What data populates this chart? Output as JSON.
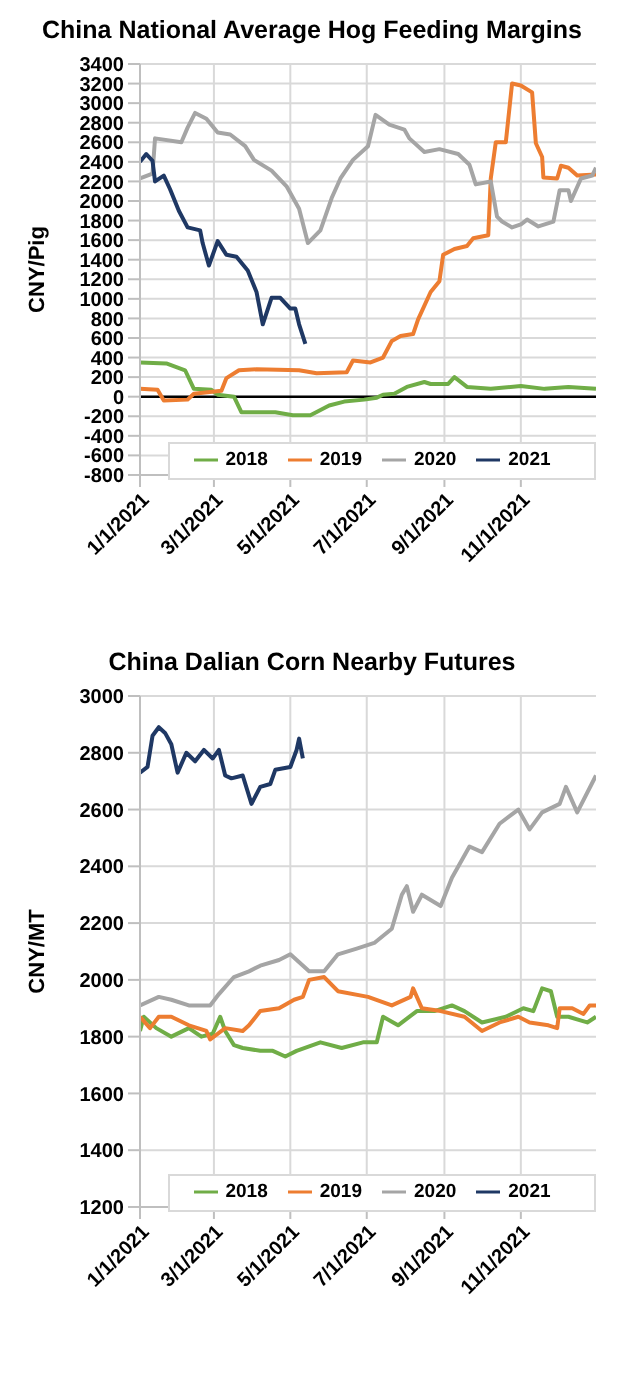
{
  "chart_data": [
    {
      "type": "line",
      "title": "China National Average Hog Feeding Margins",
      "ylabel": "CNY/Pig",
      "xlim": [
        "2021-01-01",
        "2021-12-31"
      ],
      "xticks": [
        {
          "value": "2021-01-01",
          "label": "1/1/2021"
        },
        {
          "value": "2021-03-01",
          "label": "3/1/2021"
        },
        {
          "value": "2021-05-01",
          "label": "5/1/2021"
        },
        {
          "value": "2021-07-01",
          "label": "7/1/2021"
        },
        {
          "value": "2021-09-01",
          "label": "9/1/2021"
        },
        {
          "value": "2021-11-01",
          "label": "11/1/2021"
        }
      ],
      "ylim": [
        -800,
        3400
      ],
      "yticks": [
        -800,
        -600,
        -400,
        -200,
        0,
        200,
        400,
        600,
        800,
        1000,
        1200,
        1400,
        1600,
        1800,
        2000,
        2200,
        2400,
        2600,
        2800,
        3000,
        3200,
        3400
      ],
      "grid": true,
      "legend": "bottom",
      "ref_lines": [
        {
          "axis": "y",
          "value": 0,
          "color": "#000000"
        }
      ],
      "series": [
        {
          "name": "2018",
          "color": "#70ad47",
          "x": [
            "2021-01-01",
            "2021-01-22",
            "2021-02-06",
            "2021-02-13",
            "2021-02-27",
            "2021-03-04",
            "2021-03-17",
            "2021-03-23",
            "2021-04-19",
            "2021-05-03",
            "2021-05-17",
            "2021-06-01",
            "2021-06-13",
            "2021-06-29",
            "2021-07-09",
            "2021-07-14",
            "2021-07-23",
            "2021-08-02",
            "2021-08-16",
            "2021-08-21",
            "2021-09-04",
            "2021-09-09",
            "2021-09-19",
            "2021-10-08",
            "2021-11-01",
            "2021-11-20",
            "2021-12-09",
            "2021-12-31"
          ],
          "values": [
            350,
            340,
            270,
            80,
            70,
            20,
            0,
            -160,
            -160,
            -190,
            -190,
            -90,
            -50,
            -30,
            -10,
            20,
            30,
            100,
            150,
            130,
            130,
            200,
            100,
            80,
            110,
            80,
            100,
            80
          ]
        },
        {
          "name": "2019",
          "color": "#ed7d31",
          "x": [
            "2021-01-01",
            "2021-01-15",
            "2021-01-20",
            "2021-02-08",
            "2021-02-13",
            "2021-03-07",
            "2021-03-11",
            "2021-03-21",
            "2021-04-04",
            "2021-05-08",
            "2021-05-22",
            "2021-06-15",
            "2021-06-20",
            "2021-07-04",
            "2021-07-14",
            "2021-07-21",
            "2021-07-28",
            "2021-08-07",
            "2021-08-11",
            "2021-08-21",
            "2021-08-28",
            "2021-08-31",
            "2021-09-09",
            "2021-09-19",
            "2021-09-24",
            "2021-10-06",
            "2021-10-08",
            "2021-10-12",
            "2021-10-20",
            "2021-10-25",
            "2021-11-01",
            "2021-11-10",
            "2021-11-13",
            "2021-11-18",
            "2021-11-19",
            "2021-11-30",
            "2021-12-03",
            "2021-12-09",
            "2021-12-16",
            "2021-12-31"
          ],
          "values": [
            80,
            70,
            -40,
            -30,
            30,
            60,
            190,
            270,
            280,
            270,
            240,
            250,
            370,
            350,
            400,
            570,
            620,
            640,
            790,
            1070,
            1180,
            1450,
            1510,
            1540,
            1620,
            1650,
            2230,
            2600,
            2600,
            3200,
            3180,
            3110,
            2590,
            2450,
            2240,
            2230,
            2360,
            2340,
            2260,
            2270
          ]
        },
        {
          "name": "2020",
          "color": "#a5a5a5",
          "x": [
            "2021-01-01",
            "2021-01-11",
            "2021-01-13",
            "2021-02-03",
            "2021-02-08",
            "2021-02-14",
            "2021-02-23",
            "2021-03-04",
            "2021-03-14",
            "2021-03-26",
            "2021-04-02",
            "2021-04-16",
            "2021-04-28",
            "2021-05-08",
            "2021-05-15",
            "2021-05-25",
            "2021-06-03",
            "2021-06-10",
            "2021-06-20",
            "2021-07-02",
            "2021-07-08",
            "2021-07-19",
            "2021-07-31",
            "2021-08-04",
            "2021-08-16",
            "2021-08-28",
            "2021-09-12",
            "2021-09-21",
            "2021-09-26",
            "2021-10-08",
            "2021-10-13",
            "2021-10-17",
            "2021-10-25",
            "2021-11-01",
            "2021-11-06",
            "2021-11-15",
            "2021-11-27",
            "2021-12-02",
            "2021-12-09",
            "2021-12-11",
            "2021-12-19",
            "2021-12-28",
            "2021-12-31"
          ],
          "values": [
            2230,
            2280,
            2640,
            2600,
            2750,
            2900,
            2840,
            2700,
            2680,
            2560,
            2420,
            2310,
            2150,
            1920,
            1570,
            1700,
            2030,
            2230,
            2420,
            2560,
            2880,
            2780,
            2730,
            2640,
            2500,
            2530,
            2480,
            2370,
            2170,
            2200,
            1840,
            1790,
            1730,
            1760,
            1810,
            1740,
            1790,
            2110,
            2110,
            2000,
            2230,
            2260,
            2340
          ]
        },
        {
          "name": "2021",
          "color": "#1f3864",
          "x": [
            "2021-01-01",
            "2021-01-06",
            "2021-01-11",
            "2021-01-13",
            "2021-01-20",
            "2021-01-25",
            "2021-02-01",
            "2021-02-08",
            "2021-02-18",
            "2021-02-20",
            "2021-02-25",
            "2021-03-04",
            "2021-03-11",
            "2021-03-19",
            "2021-03-28",
            "2021-04-04",
            "2021-04-09",
            "2021-04-16",
            "2021-04-23",
            "2021-05-01",
            "2021-05-05",
            "2021-05-08",
            "2021-05-13"
          ],
          "values": [
            2400,
            2480,
            2410,
            2200,
            2260,
            2120,
            1900,
            1730,
            1700,
            1570,
            1340,
            1590,
            1450,
            1430,
            1290,
            1070,
            740,
            1010,
            1010,
            900,
            900,
            740,
            540
          ]
        }
      ]
    },
    {
      "type": "line",
      "title": "China Dalian Corn Nearby Futures",
      "ylabel": "CNY/MT",
      "xlim": [
        "2021-01-01",
        "2021-12-31"
      ],
      "xticks": [
        {
          "value": "2021-01-01",
          "label": "1/1/2021"
        },
        {
          "value": "2021-03-01",
          "label": "3/1/2021"
        },
        {
          "value": "2021-05-01",
          "label": "5/1/2021"
        },
        {
          "value": "2021-07-01",
          "label": "7/1/2021"
        },
        {
          "value": "2021-09-01",
          "label": "9/1/2021"
        },
        {
          "value": "2021-11-01",
          "label": "11/1/2021"
        }
      ],
      "ylim": [
        1200,
        3000
      ],
      "yticks": [
        1200,
        1400,
        1600,
        1800,
        2000,
        2200,
        2400,
        2600,
        2800,
        3000
      ],
      "grid": true,
      "legend": "bottom",
      "series": [
        {
          "name": "2018",
          "color": "#70ad47",
          "x": [
            "2021-01-01",
            "2021-01-04",
            "2021-01-14",
            "2021-01-26",
            "2021-02-09",
            "2021-02-19",
            "2021-02-28",
            "2021-03-06",
            "2021-03-10",
            "2021-03-17",
            "2021-03-24",
            "2021-04-07",
            "2021-04-17",
            "2021-04-27",
            "2021-05-06",
            "2021-05-25",
            "2021-06-11",
            "2021-06-28",
            "2021-07-09",
            "2021-07-14",
            "2021-07-26",
            "2021-08-10",
            "2021-08-24",
            "2021-09-07",
            "2021-09-17",
            "2021-10-01",
            "2021-10-20",
            "2021-11-03",
            "2021-11-11",
            "2021-11-18",
            "2021-11-25",
            "2021-11-30",
            "2021-12-09",
            "2021-12-24",
            "2021-12-31"
          ],
          "values": [
            1820,
            1870,
            1830,
            1800,
            1830,
            1800,
            1810,
            1870,
            1820,
            1770,
            1760,
            1750,
            1750,
            1730,
            1750,
            1780,
            1760,
            1780,
            1780,
            1870,
            1840,
            1890,
            1890,
            1910,
            1890,
            1850,
            1870,
            1900,
            1890,
            1970,
            1960,
            1870,
            1870,
            1850,
            1870
          ]
        },
        {
          "name": "2019",
          "color": "#ed7d31",
          "x": [
            "2021-01-01",
            "2021-01-09",
            "2021-01-16",
            "2021-01-26",
            "2021-02-09",
            "2021-02-23",
            "2021-02-26",
            "2021-03-10",
            "2021-03-24",
            "2021-03-29",
            "2021-04-07",
            "2021-04-22",
            "2021-05-04",
            "2021-05-11",
            "2021-05-16",
            "2021-05-28",
            "2021-06-08",
            "2021-07-02",
            "2021-07-21",
            "2021-08-05",
            "2021-08-07",
            "2021-08-14",
            "2021-08-29",
            "2021-09-17",
            "2021-10-01",
            "2021-10-15",
            "2021-10-30",
            "2021-11-08",
            "2021-11-23",
            "2021-11-30",
            "2021-12-02",
            "2021-12-12",
            "2021-12-21",
            "2021-12-26",
            "2021-12-31"
          ],
          "values": [
            1870,
            1830,
            1870,
            1870,
            1840,
            1820,
            1790,
            1830,
            1820,
            1840,
            1890,
            1900,
            1930,
            1940,
            2000,
            2010,
            1960,
            1940,
            1910,
            1940,
            1970,
            1900,
            1890,
            1870,
            1820,
            1850,
            1870,
            1850,
            1840,
            1830,
            1900,
            1900,
            1880,
            1910,
            1910
          ]
        },
        {
          "name": "2020",
          "color": "#a5a5a5",
          "x": [
            "2021-01-01",
            "2021-01-16",
            "2021-01-26",
            "2021-02-09",
            "2021-02-26",
            "2021-03-05",
            "2021-03-17",
            "2021-03-29",
            "2021-04-07",
            "2021-04-22",
            "2021-05-01",
            "2021-05-16",
            "2021-05-28",
            "2021-06-08",
            "2021-06-23",
            "2021-07-07",
            "2021-07-21",
            "2021-07-29",
            "2021-08-02",
            "2021-08-07",
            "2021-08-14",
            "2021-08-29",
            "2021-09-07",
            "2021-09-21",
            "2021-10-01",
            "2021-10-15",
            "2021-10-30",
            "2021-11-08",
            "2021-11-18",
            "2021-12-02",
            "2021-12-07",
            "2021-12-16",
            "2021-12-31"
          ],
          "values": [
            1910,
            1940,
            1930,
            1910,
            1910,
            1950,
            2010,
            2030,
            2050,
            2070,
            2090,
            2030,
            2030,
            2090,
            2110,
            2130,
            2180,
            2300,
            2330,
            2240,
            2300,
            2260,
            2360,
            2470,
            2450,
            2550,
            2600,
            2530,
            2590,
            2620,
            2680,
            2590,
            2720
          ]
        },
        {
          "name": "2021",
          "color": "#1f3864",
          "x": [
            "2021-01-01",
            "2021-01-07",
            "2021-01-11",
            "2021-01-16",
            "2021-01-21",
            "2021-01-26",
            "2021-01-31",
            "2021-02-07",
            "2021-02-14",
            "2021-02-21",
            "2021-02-28",
            "2021-03-05",
            "2021-03-10",
            "2021-03-15",
            "2021-03-24",
            "2021-03-31",
            "2021-04-07",
            "2021-04-15",
            "2021-04-19",
            "2021-05-01",
            "2021-05-06",
            "2021-05-08",
            "2021-05-11"
          ],
          "values": [
            2730,
            2750,
            2860,
            2890,
            2870,
            2830,
            2730,
            2800,
            2770,
            2810,
            2780,
            2810,
            2720,
            2710,
            2720,
            2620,
            2680,
            2690,
            2740,
            2750,
            2810,
            2850,
            2780
          ]
        }
      ]
    }
  ]
}
